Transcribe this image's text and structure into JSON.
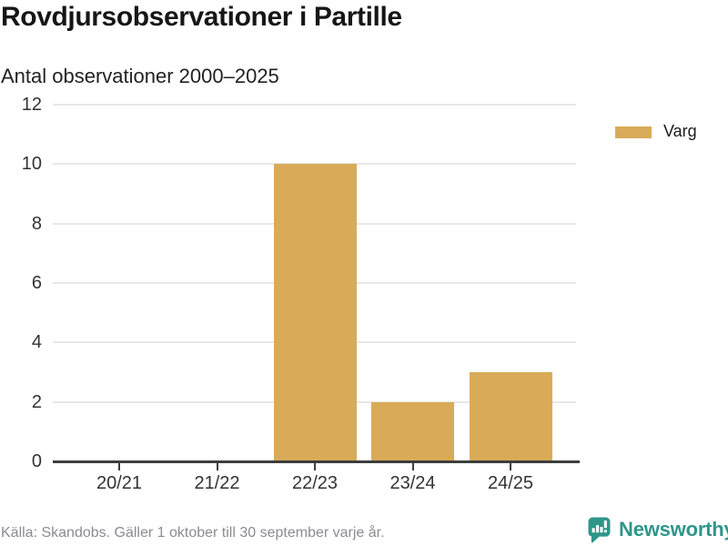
{
  "header": {
    "title": "Rovdjursobservationer i Partille",
    "subtitle": "Antal observationer 2000–2025"
  },
  "legend": {
    "label": "Varg",
    "swatch_color": "#D9AB58"
  },
  "chart_data": {
    "type": "bar",
    "categories": [
      "20/21",
      "21/22",
      "22/23",
      "23/24",
      "24/25"
    ],
    "series": [
      {
        "name": "Varg",
        "values": [
          0,
          0,
          10,
          2,
          3
        ]
      }
    ],
    "title": "Rovdjursobservationer i Partille",
    "subtitle": "Antal observationer 2000–2025",
    "xlabel": "",
    "ylabel": "",
    "ylim": [
      0,
      12
    ],
    "yticks": [
      0,
      2,
      4,
      6,
      8,
      10,
      12
    ],
    "grid": true,
    "legend_position": "top-right",
    "bar_color": "#D9AB58"
  },
  "footer": {
    "source": "Källa: Skandobs. Gäller 1 oktober till 30 september varje år.",
    "brand": "Newsworthy",
    "brand_color": "#2F968A"
  }
}
